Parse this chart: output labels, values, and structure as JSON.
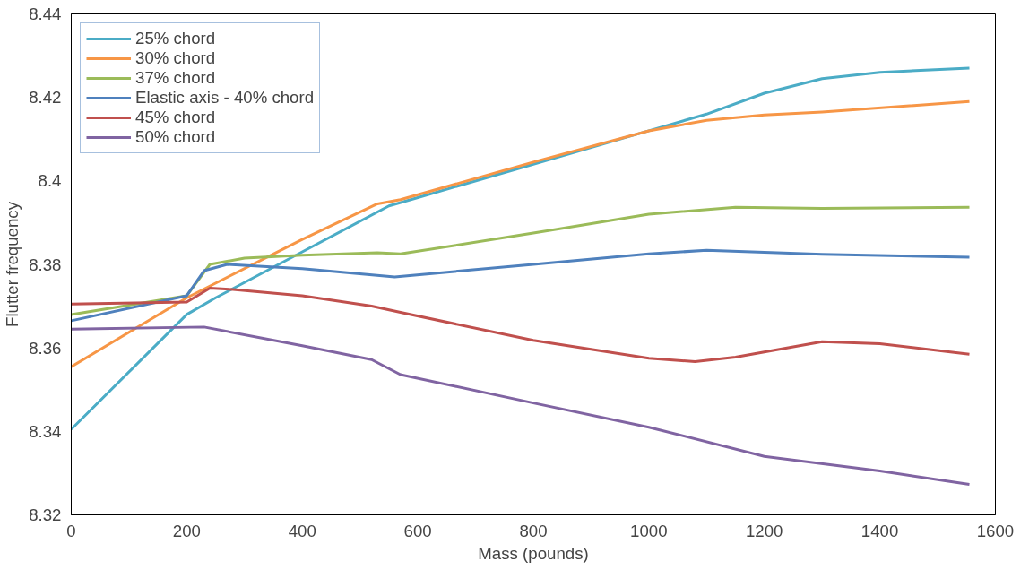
{
  "chart_data": {
    "type": "line",
    "xlabel": "Mass (pounds)",
    "ylabel": "Flutter frequency",
    "xlim": [
      0,
      1600
    ],
    "ylim": [
      8.32,
      8.44
    ],
    "xticks": [
      0,
      200,
      400,
      600,
      800,
      1000,
      1200,
      1400,
      1600
    ],
    "yticks": [
      {
        "value": 8.32,
        "label": "8.32"
      },
      {
        "value": 8.34,
        "label": "8.34"
      },
      {
        "value": 8.36,
        "label": "8.36"
      },
      {
        "value": 8.38,
        "label": "8.38"
      },
      {
        "value": 8.4,
        "label": "8.4"
      },
      {
        "value": 8.42,
        "label": "8.42"
      },
      {
        "value": 8.44,
        "label": "8.44"
      }
    ],
    "grid": false,
    "legend": "top left",
    "marker": "none",
    "line_style": "solid",
    "series": [
      {
        "name": "25% chord",
        "color": "#4bacc6",
        "x": [
          0,
          200,
          250,
          400,
          550,
          600,
          800,
          1000,
          1100,
          1200,
          1300,
          1400,
          1555
        ],
        "values": [
          8.3405,
          8.368,
          8.372,
          8.383,
          8.394,
          8.396,
          8.404,
          8.412,
          8.416,
          8.421,
          8.4245,
          8.426,
          8.427
        ]
      },
      {
        "name": "30% chord",
        "color": "#f79646",
        "x": [
          0,
          200,
          400,
          530,
          570,
          800,
          1000,
          1100,
          1200,
          1300,
          1555
        ],
        "values": [
          8.3555,
          8.372,
          8.386,
          8.3945,
          8.3955,
          8.4045,
          8.412,
          8.4145,
          8.4158,
          8.4165,
          8.419
        ]
      },
      {
        "name": "37% chord",
        "color": "#9bbb59",
        "x": [
          0,
          200,
          240,
          300,
          400,
          530,
          570,
          800,
          1000,
          1150,
          1300,
          1555
        ],
        "values": [
          8.368,
          8.3725,
          8.38,
          8.3815,
          8.3822,
          8.3828,
          8.3825,
          8.3875,
          8.392,
          8.3937,
          8.3934,
          8.3937
        ]
      },
      {
        "name": "Elastic axis - 40% chord",
        "color": "#4f81bd",
        "x": [
          0,
          200,
          230,
          270,
          400,
          560,
          800,
          1000,
          1100,
          1300,
          1555
        ],
        "values": [
          8.3665,
          8.3725,
          8.3785,
          8.38,
          8.379,
          8.377,
          8.38,
          8.3825,
          8.3834,
          8.3824,
          8.3817
        ]
      },
      {
        "name": "45% chord",
        "color": "#c0504d",
        "x": [
          0,
          200,
          240,
          280,
          400,
          520,
          570,
          800,
          1000,
          1080,
          1150,
          1300,
          1400,
          1555
        ],
        "values": [
          8.3705,
          8.371,
          8.3743,
          8.374,
          8.3725,
          8.37,
          8.3685,
          8.3618,
          8.3575,
          8.3567,
          8.3578,
          8.3615,
          8.361,
          8.3585
        ]
      },
      {
        "name": "50% chord",
        "color": "#8064a2",
        "x": [
          0,
          230,
          400,
          520,
          570,
          800,
          1000,
          1200,
          1400,
          1555
        ],
        "values": [
          8.3645,
          8.365,
          8.3605,
          8.3572,
          8.3536,
          8.3468,
          8.341,
          8.334,
          8.3305,
          8.3273
        ]
      }
    ]
  }
}
